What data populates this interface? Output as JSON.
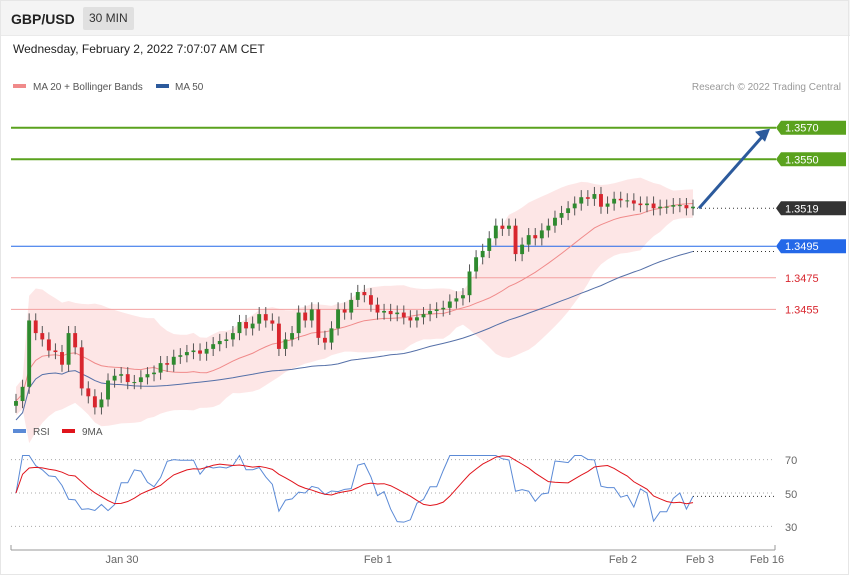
{
  "header": {
    "symbol": "GBP/USD",
    "timeframe": "30 MIN"
  },
  "timestamp": "Wednesday, February 2, 2022 7:07:07 AM CET",
  "credit": "Research © 2022 Trading Central",
  "legend": [
    {
      "label": "MA 20 + Bollinger Bands",
      "color": "#f08a8a"
    },
    {
      "label": "MA 50",
      "color": "#2c5a9c"
    }
  ],
  "rsi_legend": [
    {
      "label": "RSI",
      "color": "#5b8ad6"
    },
    {
      "label": "9MA",
      "color": "#e0141c"
    }
  ],
  "colors": {
    "resistance": "#5aa21e",
    "pivot": "#2468e8",
    "support": "#f3a0a0",
    "last_price": "#333333",
    "arrow": "#2c5a9c",
    "bullish": "#2f8a2f",
    "bearish": "#d8262e",
    "band_fill": "#fde3e3"
  },
  "chart_data": {
    "type": "candlestick",
    "price_range": [
      1.3385,
      1.3585
    ],
    "time_axis": [
      "Jan 30",
      "Feb 1",
      "Feb 2",
      "Feb 3",
      "Feb 16"
    ],
    "levels": [
      {
        "value": "1.3570",
        "kind": "resistance"
      },
      {
        "value": "1.3550",
        "kind": "resistance"
      },
      {
        "value": "1.3519",
        "kind": "last"
      },
      {
        "value": "1.3495",
        "kind": "pivot"
      },
      {
        "value": "1.3475",
        "kind": "support"
      },
      {
        "value": "1.3455",
        "kind": "support"
      }
    ],
    "projection": {
      "from": 1.3519,
      "to": 1.357
    },
    "candles": [
      1.3397,
      1.3406,
      1.3448,
      1.344,
      1.3436,
      1.3429,
      1.3428,
      1.342,
      1.344,
      1.3431,
      1.3405,
      1.34,
      1.3393,
      1.3398,
      1.341,
      1.3413,
      1.3414,
      1.3409,
      1.3409,
      1.3412,
      1.3414,
      1.3415,
      1.3421,
      1.342,
      1.3425,
      1.3426,
      1.3428,
      1.3429,
      1.3427,
      1.343,
      1.3433,
      1.3435,
      1.3436,
      1.344,
      1.3447,
      1.3443,
      1.3446,
      1.3452,
      1.3448,
      1.3446,
      1.343,
      1.3436,
      1.344,
      1.3453,
      1.3448,
      1.3455,
      1.3437,
      1.3434,
      1.3443,
      1.3455,
      1.3453,
      1.3461,
      1.3466,
      1.3464,
      1.3458,
      1.3453,
      1.3454,
      1.3452,
      1.3453,
      1.345,
      1.3448,
      1.345,
      1.3452,
      1.3454,
      1.3455,
      1.3456,
      1.346,
      1.3462,
      1.3464,
      1.3479,
      1.3488,
      1.3492,
      1.35,
      1.3508,
      1.3506,
      1.3508,
      1.349,
      1.3496,
      1.3502,
      1.35,
      1.3505,
      1.3508,
      1.3513,
      1.3516,
      1.3519,
      1.3522,
      1.3526,
      1.3525,
      1.3528,
      1.352,
      1.3522,
      1.3525,
      1.3524,
      1.3524,
      1.3522,
      1.3521,
      1.3522,
      1.3519,
      1.352,
      1.352,
      1.3521,
      1.3521,
      1.3519,
      1.352
    ],
    "ma20_endpoints": [
      1.342,
      1.3521
    ],
    "ma50_endpoints": [
      1.34,
      1.3505
    ],
    "rsi": {
      "ticks": [
        "70",
        "50",
        "30"
      ],
      "range": [
        20,
        80
      ],
      "last_value": 48
    }
  }
}
